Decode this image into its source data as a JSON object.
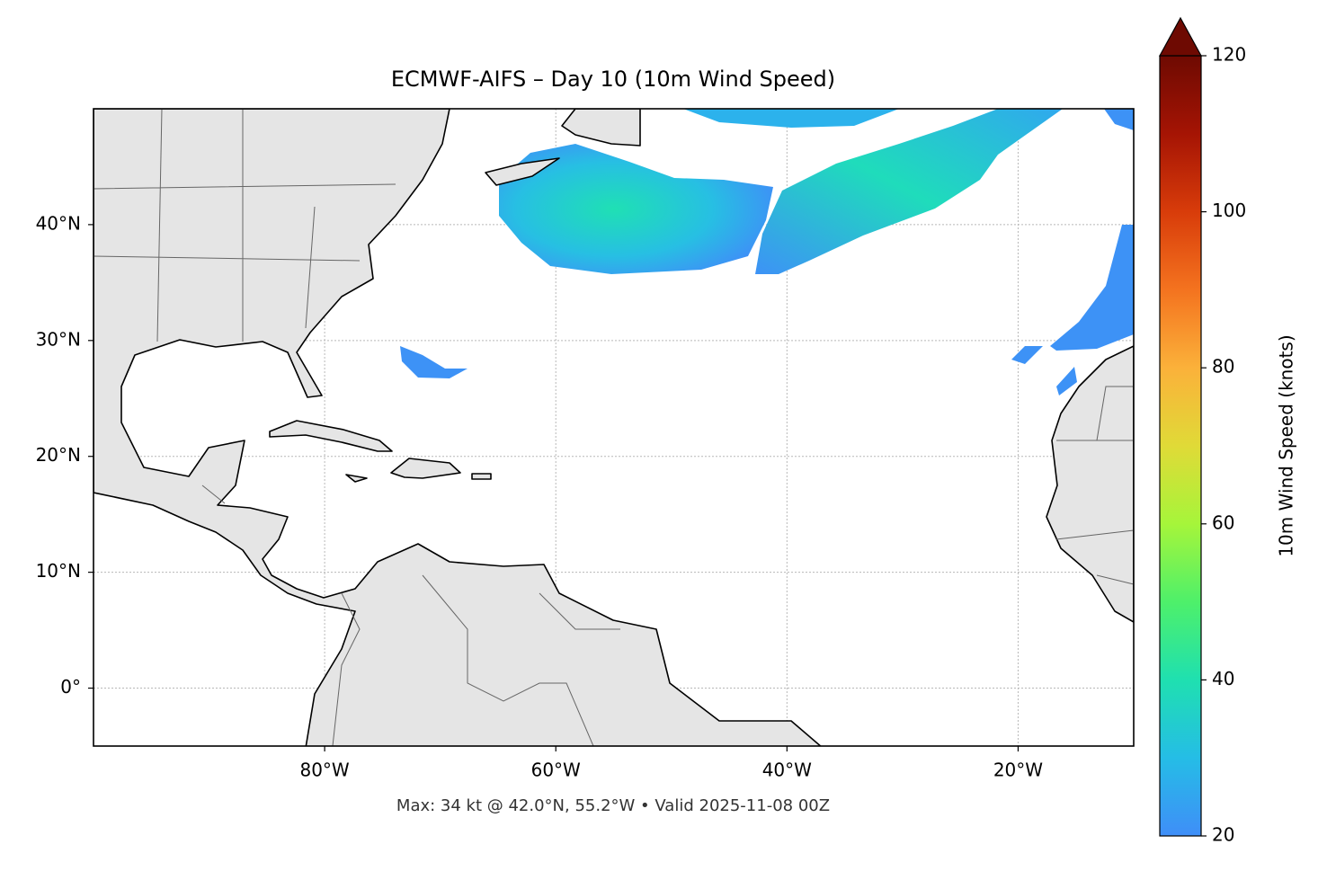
{
  "chart_data": {
    "type": "map",
    "title": "ECMWF-AIFS – Day 10 (10m Wind Speed)",
    "footer": "Max: 34 kt @ 42.0°N, 55.2°W • Valid 2025-11-08 00Z",
    "xlim": [
      -100,
      -10
    ],
    "ylim": [
      -5,
      50
    ],
    "xticks": [
      {
        "value": -80,
        "label": "80°W"
      },
      {
        "value": -60,
        "label": "60°W"
      },
      {
        "value": -40,
        "label": "40°W"
      },
      {
        "value": -20,
        "label": "20°W"
      }
    ],
    "yticks": [
      {
        "value": 0,
        "label": "0°"
      },
      {
        "value": 10,
        "label": "10°N"
      },
      {
        "value": 20,
        "label": "20°N"
      },
      {
        "value": 30,
        "label": "30°N"
      },
      {
        "value": 40,
        "label": "40°N"
      }
    ],
    "grid": true,
    "colorbar": {
      "label": "10m Wind Speed (knots)",
      "lim": [
        20,
        120
      ],
      "ticks": [
        20,
        40,
        60,
        80,
        100,
        120
      ],
      "extend": "max",
      "colors": [
        "#3f8ef8",
        "#25bde6",
        "#1fe0b0",
        "#4ef06a",
        "#a6f53a",
        "#e0da37",
        "#fbb13a",
        "#f4731f",
        "#d83c0a",
        "#a51404",
        "#6e0a02"
      ]
    }
  }
}
